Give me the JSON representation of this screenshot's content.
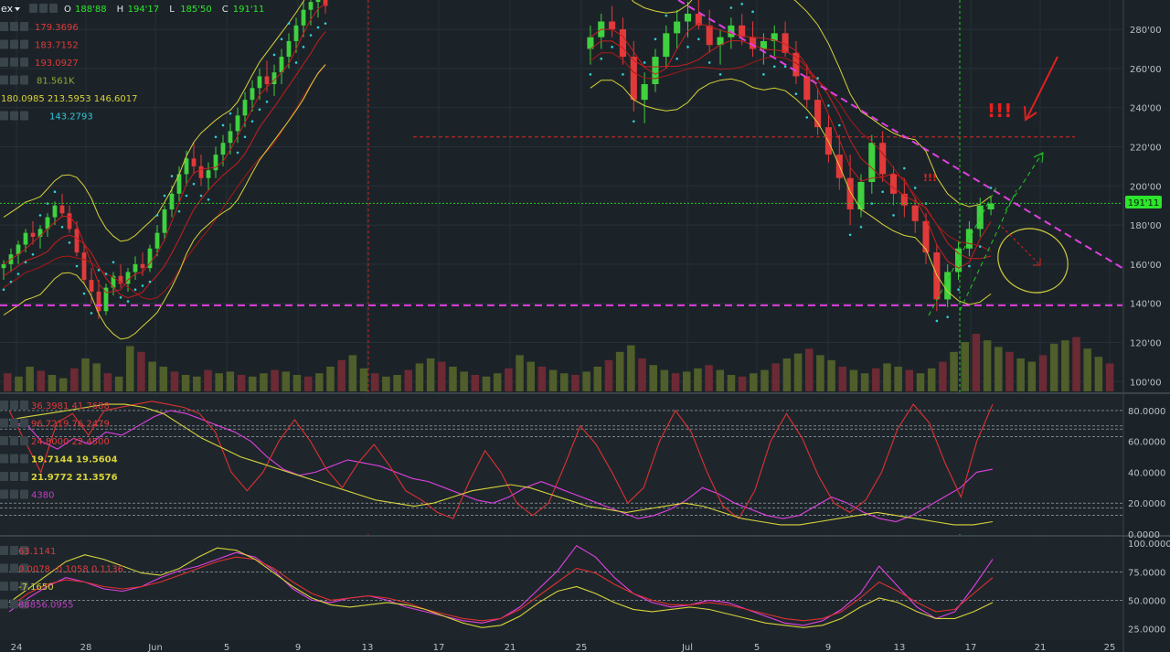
{
  "header": {
    "symbol_suffix": "ex",
    "dropdown_icon": "caret-down-icon",
    "ohlc": [
      {
        "k": "O",
        "v": "188'88"
      },
      {
        "k": "H",
        "v": "194'17"
      },
      {
        "k": "L",
        "v": "185'50"
      },
      {
        "k": "C",
        "v": "191'11"
      }
    ]
  },
  "colors": {
    "background": "#1c2328",
    "bull": "#3fd13f",
    "bear": "#e23a3a",
    "magenta": "#e040e0",
    "yellow": "#d8d23a",
    "cyan": "#30d0d8",
    "red_line": "#c82424",
    "green_guide": "#22cc22",
    "label_green": "#2be62b"
  },
  "indicators_main": [
    {
      "value": "179.3696",
      "color": "#e03a3a"
    },
    {
      "value": "183.7152",
      "color": "#e03a3a"
    },
    {
      "value": "193.0927",
      "color": "#e03a3a"
    },
    {
      "value": "81.561K",
      "color": "#8fa63a"
    },
    {
      "value": "180.0985  213.5953  146.6017",
      "color": "#d8d23a"
    },
    {
      "value": "143.2793",
      "color": "#30c8d8"
    }
  ],
  "indicators_osc1": [
    {
      "value": "36.3981  41.7688",
      "color": "#e03a3a"
    },
    {
      "value": "96.7219  76.2479",
      "color": "#e03a3a"
    },
    {
      "value": "24.8000  22.4500",
      "color": "#e03a3a"
    },
    {
      "value": "19.7144  19.5604",
      "color": "#d8d23a"
    },
    {
      "value": "21.9772  21.3576",
      "color": "#d8d23a"
    },
    {
      "value": "4380",
      "color": "#c040c0"
    }
  ],
  "indicators_osc2": [
    {
      "value": "63.1141",
      "color": "#e03a3a"
    },
    {
      "value": "0.0078  -0.1058  0.1136",
      "color": "#e03a3a"
    },
    {
      "value": "-7.1650",
      "color": "#d8d23a"
    },
    {
      "value": "88856.0955",
      "color": "#c040c0"
    }
  ],
  "annotations": {
    "alert": "!!!",
    "alert_small": "!!!",
    "last_price": "191'11"
  },
  "chart_data": [
    {
      "type": "candlestick",
      "ylim": [
        95,
        295
      ],
      "yticks": [
        "280'00",
        "260'00",
        "240'00",
        "220'00",
        "200'00",
        "180'00",
        "160'00",
        "140'00",
        "120'00",
        "100'00"
      ],
      "ytick_values": [
        280,
        260,
        240,
        220,
        200,
        180,
        160,
        140,
        120,
        100
      ],
      "xticks": [
        "24",
        "28",
        "Jun",
        "5",
        "9",
        "13",
        "17",
        "21",
        "25",
        "Jul",
        "5",
        "9",
        "13",
        "17",
        "21",
        "25"
      ],
      "last_price": 191.11,
      "support_level": 139,
      "resistance_level": 225,
      "candles": [
        [
          158,
          162,
          152,
          160
        ],
        [
          160,
          168,
          156,
          165
        ],
        [
          165,
          172,
          160,
          170
        ],
        [
          170,
          178,
          166,
          176
        ],
        [
          176,
          182,
          170,
          174
        ],
        [
          174,
          180,
          168,
          178
        ],
        [
          178,
          186,
          174,
          184
        ],
        [
          184,
          192,
          180,
          190
        ],
        [
          190,
          196,
          184,
          186
        ],
        [
          186,
          190,
          176,
          178
        ],
        [
          178,
          182,
          164,
          166
        ],
        [
          166,
          170,
          150,
          152
        ],
        [
          152,
          158,
          140,
          146
        ],
        [
          146,
          152,
          132,
          136
        ],
        [
          136,
          150,
          134,
          148
        ],
        [
          148,
          156,
          144,
          154
        ],
        [
          154,
          160,
          148,
          150
        ],
        [
          150,
          158,
          146,
          156
        ],
        [
          156,
          164,
          152,
          160
        ],
        [
          160,
          166,
          154,
          158
        ],
        [
          158,
          170,
          156,
          168
        ],
        [
          168,
          180,
          164,
          176
        ],
        [
          176,
          190,
          172,
          188
        ],
        [
          188,
          200,
          184,
          196
        ],
        [
          196,
          210,
          192,
          206
        ],
        [
          206,
          218,
          200,
          214
        ],
        [
          214,
          222,
          206,
          210
        ],
        [
          210,
          216,
          200,
          204
        ],
        [
          204,
          212,
          198,
          208
        ],
        [
          208,
          220,
          204,
          216
        ],
        [
          216,
          226,
          210,
          222
        ],
        [
          222,
          232,
          216,
          228
        ],
        [
          228,
          240,
          222,
          236
        ],
        [
          236,
          248,
          230,
          244
        ],
        [
          244,
          254,
          238,
          250
        ],
        [
          250,
          260,
          244,
          256
        ],
        [
          256,
          264,
          248,
          252
        ],
        [
          252,
          262,
          246,
          258
        ],
        [
          258,
          270,
          252,
          266
        ],
        [
          266,
          278,
          260,
          274
        ],
        [
          274,
          286,
          268,
          282
        ],
        [
          282,
          294,
          276,
          290
        ],
        [
          290,
          298,
          282,
          294
        ],
        [
          294,
          298,
          286,
          296
        ],
        [
          296,
          298,
          288,
          292
        ]
      ],
      "candles_b": [
        [
          270,
          282,
          262,
          276
        ],
        [
          276,
          288,
          270,
          284
        ],
        [
          284,
          292,
          276,
          280
        ],
        [
          280,
          286,
          262,
          266
        ],
        [
          266,
          274,
          238,
          244
        ],
        [
          244,
          258,
          232,
          252
        ],
        [
          252,
          270,
          248,
          266
        ],
        [
          266,
          282,
          260,
          278
        ],
        [
          278,
          290,
          270,
          284
        ],
        [
          284,
          294,
          276,
          288
        ],
        [
          288,
          296,
          280,
          282
        ],
        [
          282,
          290,
          268,
          272
        ],
        [
          272,
          280,
          262,
          276
        ],
        [
          276,
          286,
          270,
          282
        ],
        [
          282,
          288,
          272,
          276
        ],
        [
          276,
          284,
          266,
          270
        ],
        [
          270,
          278,
          262,
          274
        ],
        [
          274,
          282,
          266,
          278
        ],
        [
          278,
          284,
          266,
          268
        ],
        [
          268,
          274,
          252,
          256
        ],
        [
          256,
          262,
          240,
          244
        ],
        [
          244,
          250,
          226,
          230
        ],
        [
          230,
          236,
          212,
          216
        ],
        [
          216,
          226,
          198,
          204
        ],
        [
          204,
          216,
          180,
          188
        ],
        [
          188,
          206,
          184,
          202
        ],
        [
          202,
          226,
          196,
          222
        ],
        [
          222,
          228,
          202,
          206
        ],
        [
          206,
          210,
          190,
          196
        ],
        [
          196,
          204,
          184,
          190
        ],
        [
          190,
          194,
          176,
          182
        ],
        [
          182,
          186,
          160,
          166
        ],
        [
          166,
          170,
          136,
          142
        ],
        [
          142,
          160,
          138,
          156
        ],
        [
          156,
          172,
          152,
          168
        ],
        [
          168,
          182,
          164,
          178
        ],
        [
          178,
          194,
          174,
          190
        ],
        [
          188,
          194,
          185,
          191
        ]
      ],
      "volume_ylim": [
        0,
        100
      ],
      "volume": [
        22,
        18,
        30,
        25,
        20,
        16,
        28,
        40,
        34,
        22,
        18,
        55,
        48,
        36,
        30,
        24,
        20,
        18,
        26,
        22,
        24,
        20,
        18,
        22,
        26,
        24,
        20,
        18,
        22,
        30,
        38,
        44,
        28,
        22,
        18,
        20,
        26,
        34,
        40,
        36,
        30,
        24,
        20,
        18,
        22,
        28,
        44,
        36,
        30,
        26,
        22,
        20,
        24,
        30,
        38,
        48,
        56,
        40,
        32,
        26,
        22,
        24,
        28,
        32,
        26,
        20,
        18,
        22,
        26,
        34,
        40,
        46,
        52,
        44,
        38,
        30,
        26,
        22,
        28,
        34,
        30,
        26,
        22,
        28,
        36,
        48,
        60,
        70,
        62,
        54,
        48,
        40,
        36,
        44,
        58,
        62,
        66,
        52,
        42,
        34
      ],
      "moving_averages": [
        "179.3696",
        "183.7152",
        "193.0927"
      ],
      "bollinger": [
        "180.0985",
        "213.5953",
        "146.6017"
      ]
    },
    {
      "type": "line",
      "ylim": [
        0,
        90
      ],
      "yticks": [
        "80.0000",
        "60.0000",
        "40.0000",
        "20.0000",
        "0.0000"
      ],
      "ytick_values": [
        80,
        60,
        40,
        20,
        0
      ],
      "hlines": [
        80,
        70,
        68,
        63,
        20,
        17,
        12
      ],
      "series": [
        {
          "color": "#e040e0",
          "values": [
            70,
            72,
            60,
            55,
            62,
            58,
            66,
            64,
            70,
            76,
            80,
            78,
            74,
            70,
            66,
            60,
            50,
            42,
            38,
            40,
            44,
            48,
            46,
            44,
            40,
            36,
            34,
            30,
            26,
            22,
            20,
            24,
            30,
            34,
            30,
            26,
            22,
            18,
            14,
            10,
            12,
            16,
            22,
            30,
            26,
            20,
            16,
            12,
            10,
            12,
            18,
            24,
            20,
            14,
            10,
            8,
            12,
            18,
            24,
            30,
            40,
            42
          ]
        },
        {
          "color": "#e03030",
          "values": [
            80,
            60,
            40,
            72,
            78,
            64,
            80,
            82,
            84,
            86,
            84,
            82,
            78,
            66,
            40,
            28,
            40,
            60,
            74,
            60,
            42,
            30,
            46,
            58,
            44,
            28,
            22,
            14,
            10,
            34,
            54,
            40,
            20,
            12,
            20,
            44,
            70,
            58,
            40,
            20,
            30,
            60,
            80,
            66,
            40,
            18,
            10,
            28,
            60,
            78,
            62,
            38,
            20,
            14,
            22,
            40,
            68,
            84,
            72,
            46,
            24,
            60,
            84
          ]
        },
        {
          "color": "#d8d23a",
          "values": [
            74,
            76,
            78,
            80,
            82,
            84,
            84,
            82,
            78,
            70,
            62,
            56,
            50,
            46,
            42,
            38,
            34,
            30,
            26,
            22,
            20,
            18,
            20,
            24,
            28,
            30,
            32,
            30,
            26,
            22,
            18,
            16,
            14,
            16,
            18,
            20,
            18,
            14,
            10,
            8,
            6,
            6,
            8,
            10,
            12,
            14,
            12,
            10,
            8,
            6,
            6,
            8
          ]
        }
      ]
    },
    {
      "type": "line",
      "ylim": [
        15,
        105
      ],
      "yticks": [
        "100.0000",
        "75.0000",
        "50.0000",
        "25.0000"
      ],
      "ytick_values": [
        100,
        75,
        50,
        25
      ],
      "hlines": [
        75,
        50
      ],
      "series": [
        {
          "color": "#e040e0",
          "values": [
            40,
            52,
            62,
            70,
            66,
            60,
            58,
            62,
            70,
            76,
            80,
            86,
            92,
            88,
            76,
            60,
            50,
            48,
            52,
            54,
            50,
            44,
            40,
            36,
            32,
            30,
            34,
            44,
            60,
            76,
            98,
            88,
            70,
            56,
            48,
            44,
            46,
            50,
            48,
            42,
            36,
            30,
            28,
            32,
            42,
            56,
            80,
            62,
            44,
            34,
            40,
            62,
            86
          ]
        },
        {
          "color": "#e03030",
          "values": [
            44,
            56,
            64,
            68,
            66,
            62,
            60,
            62,
            66,
            72,
            78,
            84,
            88,
            86,
            78,
            66,
            56,
            50,
            52,
            54,
            52,
            48,
            42,
            38,
            34,
            32,
            34,
            42,
            54,
            66,
            78,
            74,
            64,
            56,
            50,
            46,
            46,
            48,
            46,
            42,
            38,
            34,
            32,
            34,
            40,
            52,
            66,
            58,
            48,
            40,
            42,
            56,
            70
          ]
        },
        {
          "color": "#d8d23a",
          "values": [
            48,
            60,
            72,
            84,
            90,
            86,
            80,
            74,
            72,
            78,
            88,
            96,
            94,
            86,
            74,
            62,
            52,
            46,
            44,
            46,
            48,
            46,
            42,
            36,
            30,
            26,
            28,
            36,
            48,
            58,
            62,
            56,
            48,
            42,
            40,
            42,
            44,
            42,
            38,
            34,
            30,
            28,
            26,
            28,
            34,
            44,
            52,
            48,
            40,
            34,
            34,
            40,
            48
          ]
        }
      ]
    }
  ]
}
